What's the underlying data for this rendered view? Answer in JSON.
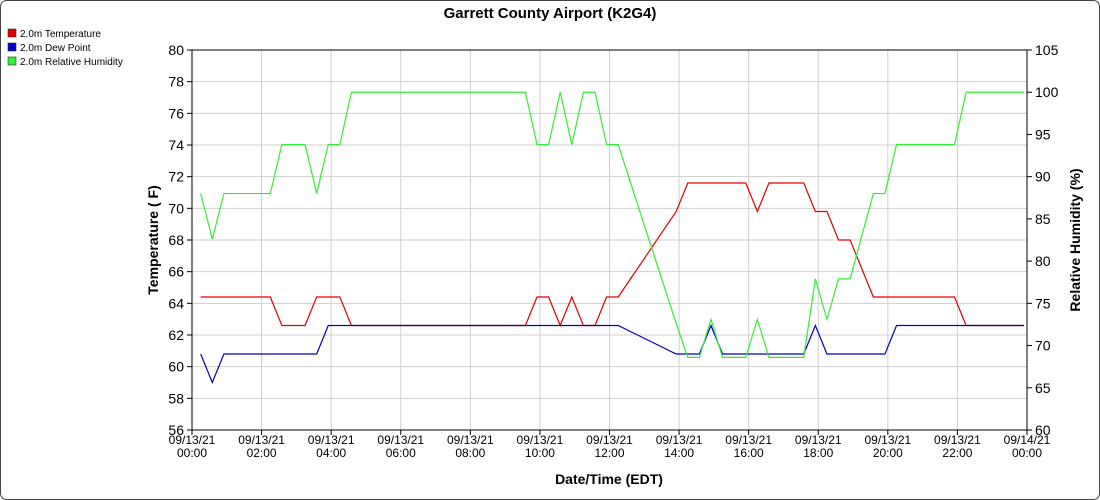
{
  "chart_data": {
    "type": "line",
    "title": "Garrett County Airport (K2G4)",
    "x_label": "Date/Time (EDT)",
    "y_label": "Temperature ( F)",
    "y2_label": "Relative Humidity (%)",
    "grid": true,
    "legend": "top-left",
    "x": [
      "09/13/21 00:15",
      "09/13/21 00:35",
      "09/13/21 00:55",
      "09/13/21 02:15",
      "09/13/21 02:35",
      "09/13/21 03:15",
      "09/13/21 03:35",
      "09/13/21 03:55",
      "09/13/21 04:15",
      "09/13/21 04:35",
      "09/13/21 09:35",
      "09/13/21 09:55",
      "09/13/21 10:15",
      "09/13/21 10:35",
      "09/13/21 10:55",
      "09/13/21 11:15",
      "09/13/21 11:35",
      "09/13/21 11:55",
      "09/13/21 12:15",
      "09/13/21 13:55",
      "09/13/21 14:15",
      "09/13/21 14:35",
      "09/13/21 14:55",
      "09/13/21 15:15",
      "09/13/21 15:55",
      "09/13/21 16:15",
      "09/13/21 16:35",
      "09/13/21 17:35",
      "09/13/21 17:55",
      "09/13/21 18:15",
      "09/13/21 18:35",
      "09/13/21 18:55",
      "09/13/21 19:35",
      "09/13/21 19:55",
      "09/13/21 20:15",
      "09/13/21 21:55",
      "09/13/21 22:15",
      "09/13/21 23:55"
    ],
    "series": [
      {
        "name": "2.0m Temperature",
        "color": "#e00000",
        "values": [
          64.4,
          64.4,
          64.4,
          64.4,
          62.6,
          62.6,
          64.4,
          64.4,
          64.4,
          62.6,
          62.6,
          64.4,
          64.4,
          62.6,
          64.4,
          62.6,
          62.6,
          64.4,
          64.4,
          69.8,
          71.6,
          71.6,
          71.6,
          71.6,
          71.6,
          69.8,
          71.6,
          71.6,
          69.8,
          69.8,
          68,
          68,
          64.4,
          64.4,
          64.4,
          64.4,
          62.6,
          62.6
        ]
      },
      {
        "name": "2.0m Dew Point",
        "color": "#0000cc",
        "values": [
          60.8,
          59,
          60.8,
          60.8,
          60.8,
          60.8,
          60.8,
          62.6,
          62.6,
          62.6,
          62.6,
          62.6,
          62.6,
          62.6,
          62.6,
          62.6,
          62.6,
          62.6,
          62.6,
          60.8,
          60.8,
          60.8,
          62.6,
          60.8,
          60.8,
          60.8,
          60.8,
          60.8,
          62.6,
          60.8,
          60.8,
          60.8,
          60.8,
          60.8,
          62.6,
          62.6,
          62.6,
          62.6
        ]
      },
      {
        "name": "2.0m Relative Humidity",
        "color": "#33ee33",
        "axis": "y2",
        "values": [
          88,
          82.6,
          88,
          88,
          93.8,
          93.8,
          88,
          93.8,
          93.8,
          100,
          100,
          93.8,
          93.8,
          100,
          93.8,
          100,
          100,
          93.8,
          93.8,
          72.6,
          68.6,
          68.6,
          73.1,
          68.6,
          68.6,
          73.1,
          68.6,
          68.6,
          77.9,
          73.1,
          77.9,
          77.9,
          88,
          88,
          93.8,
          93.8,
          100,
          100
        ]
      }
    ],
    "xlim": [
      "09/13/21 00:00",
      "09/14/21 00:00"
    ],
    "xticks": [
      {
        "value": "09/13/21 00:00",
        "label": [
          "09/13/21",
          "00:00"
        ]
      },
      {
        "value": "09/13/21 02:00",
        "label": [
          "09/13/21",
          "02:00"
        ]
      },
      {
        "value": "09/13/21 04:00",
        "label": [
          "09/13/21",
          "04:00"
        ]
      },
      {
        "value": "09/13/21 06:00",
        "label": [
          "09/13/21",
          "06:00"
        ]
      },
      {
        "value": "09/13/21 08:00",
        "label": [
          "09/13/21",
          "08:00"
        ]
      },
      {
        "value": "09/13/21 10:00",
        "label": [
          "09/13/21",
          "10:00"
        ]
      },
      {
        "value": "09/13/21 12:00",
        "label": [
          "09/13/21",
          "12:00"
        ]
      },
      {
        "value": "09/13/21 14:00",
        "label": [
          "09/13/21",
          "14:00"
        ]
      },
      {
        "value": "09/13/21 16:00",
        "label": [
          "09/13/21",
          "16:00"
        ]
      },
      {
        "value": "09/13/21 18:00",
        "label": [
          "09/13/21",
          "18:00"
        ]
      },
      {
        "value": "09/13/21 20:00",
        "label": [
          "09/13/21",
          "20:00"
        ]
      },
      {
        "value": "09/13/21 22:00",
        "label": [
          "09/13/21",
          "22:00"
        ]
      },
      {
        "value": "09/14/21 00:00",
        "label": [
          "09/14/21",
          "00:00"
        ]
      }
    ],
    "ylim": [
      56,
      80
    ],
    "yticks": [
      56,
      58,
      60,
      62,
      64,
      66,
      68,
      70,
      72,
      74,
      76,
      78,
      80
    ],
    "y2lim": [
      60,
      105
    ],
    "y2ticks": [
      60,
      65,
      70,
      75,
      80,
      85,
      90,
      95,
      100,
      105
    ]
  }
}
